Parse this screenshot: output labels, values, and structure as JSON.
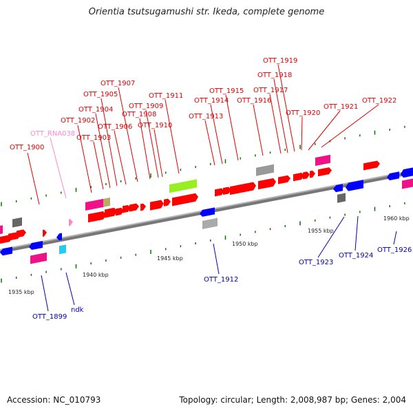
{
  "title": "Orientia tsutsugamushi str. Ikeda, complete genome",
  "footer": {
    "accession": "Accession: NC_010793",
    "summary": "Topology: circular; Length: 2,008,987 bp; Genes: 2,004"
  },
  "colors": {
    "forward_cds": "#ff0000",
    "reverse_cds": "#0000ff",
    "forward_label": "#dd0000",
    "reverse_label": "#0000aa",
    "rna_label": "#ff88cc",
    "backbone": "#8a8a8a",
    "tick": "#007700",
    "feature_magenta": "#ee1188",
    "feature_gray": "#999999",
    "feature_lime": "#99ee22",
    "feature_tan": "#bbaa66",
    "feature_cyan": "#22ccee"
  },
  "kbp_labels": [
    "1935 kbp",
    "1940 kbp",
    "1945 kbp",
    "1950 kbp",
    "1955 kbp",
    "1960 kbp"
  ],
  "genes_top": [
    "OTT_RNA038",
    "OTT_1900",
    "OTT_1902",
    "OTT_1903",
    "OTT_1904",
    "OTT_1905",
    "OTT_1906",
    "OTT_1907",
    "OTT_1908",
    "OTT_1909",
    "OTT_1910",
    "OTT_1911",
    "OTT_1913",
    "OTT_1914",
    "OTT_1915",
    "OTT_1916",
    "OTT_1917",
    "OTT_1918",
    "OTT_1919",
    "OTT_1920",
    "OTT_1921",
    "OTT_1922"
  ],
  "genes_bottom": [
    "OTT_1899",
    "ndk",
    "OTT_1912",
    "OTT_1923",
    "OTT_1924",
    "OTT_1926"
  ]
}
